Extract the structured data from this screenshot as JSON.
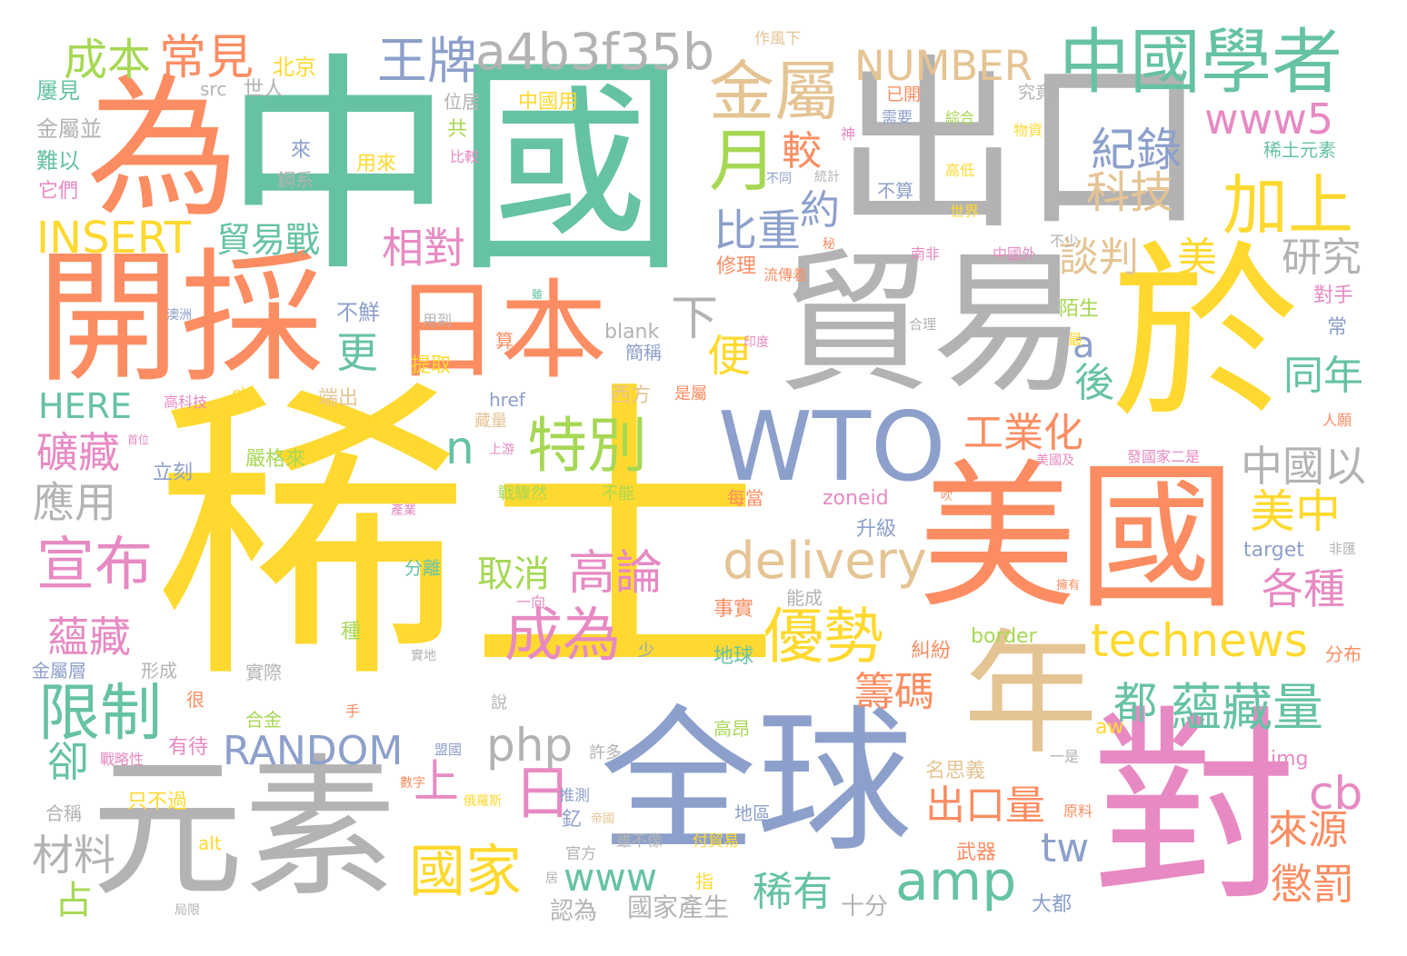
{
  "colors": {
    "teal": "#66c2a5",
    "orange": "#fc8d62",
    "blue": "#8da0cb",
    "pink": "#e78ac3",
    "green": "#a6d854",
    "yellow": "#ffd92f",
    "tan": "#e5c494",
    "gray": "#b3b3b3"
  },
  "words": [
    {
      "text": "稀土",
      "color": "yellow"
    },
    {
      "text": "中國",
      "color": "teal"
    },
    {
      "text": "出口",
      "color": "gray"
    },
    {
      "text": "為",
      "color": "orange"
    },
    {
      "text": "開採",
      "color": "orange"
    },
    {
      "text": "貿易",
      "color": "gray"
    },
    {
      "text": "於",
      "color": "yellow"
    },
    {
      "text": "美國",
      "color": "orange"
    },
    {
      "text": "全球",
      "color": "blue"
    },
    {
      "text": "元素",
      "color": "gray"
    },
    {
      "text": "對",
      "color": "pink"
    },
    {
      "text": "年",
      "color": "tan"
    },
    {
      "text": "日本",
      "color": "orange"
    },
    {
      "text": "WTO",
      "color": "blue"
    },
    {
      "text": "中國學者",
      "color": "teal"
    },
    {
      "text": "a4b3f35b",
      "color": "gray"
    },
    {
      "text": "王牌",
      "color": "blue"
    },
    {
      "text": "成本",
      "color": "green"
    },
    {
      "text": "常見",
      "color": "orange"
    },
    {
      "text": "金屬",
      "color": "tan"
    },
    {
      "text": "NUMBER",
      "color": "tan"
    },
    {
      "text": "紀錄",
      "color": "blue"
    },
    {
      "text": "科技",
      "color": "tan"
    },
    {
      "text": "www5",
      "color": "pink"
    },
    {
      "text": "加上",
      "color": "yellow"
    },
    {
      "text": "月",
      "color": "green"
    },
    {
      "text": "較",
      "color": "orange"
    },
    {
      "text": "INSERT",
      "color": "yellow"
    },
    {
      "text": "貿易戰",
      "color": "teal"
    },
    {
      "text": "相對",
      "color": "pink"
    },
    {
      "text": "比重",
      "color": "blue"
    },
    {
      "text": "約",
      "color": "blue"
    },
    {
      "text": "談判",
      "color": "tan"
    },
    {
      "text": "美",
      "color": "yellow"
    },
    {
      "text": "研究",
      "color": "gray"
    },
    {
      "text": "下",
      "color": "gray"
    },
    {
      "text": "更",
      "color": "teal"
    },
    {
      "text": "a",
      "color": "blue"
    },
    {
      "text": "便",
      "color": "yellow"
    },
    {
      "text": "後",
      "color": "teal"
    },
    {
      "text": "同年",
      "color": "teal"
    },
    {
      "text": "HERE",
      "color": "teal"
    },
    {
      "text": "特別",
      "color": "green"
    },
    {
      "text": "工業化",
      "color": "orange"
    },
    {
      "text": "中國以",
      "color": "gray"
    },
    {
      "text": "n",
      "color": "teal"
    },
    {
      "text": "礦藏",
      "color": "pink"
    },
    {
      "text": "應用",
      "color": "gray"
    },
    {
      "text": "宣布",
      "color": "pink"
    },
    {
      "text": "美中",
      "color": "yellow"
    },
    {
      "text": "delivery",
      "color": "tan"
    },
    {
      "text": "取消",
      "color": "green"
    },
    {
      "text": "高論",
      "color": "pink"
    },
    {
      "text": "各種",
      "color": "pink"
    },
    {
      "text": "成為",
      "color": "pink"
    },
    {
      "text": "優勢",
      "color": "yellow"
    },
    {
      "text": "technews",
      "color": "yellow"
    },
    {
      "text": "蘊藏",
      "color": "pink"
    },
    {
      "text": "限制",
      "color": "teal"
    },
    {
      "text": "都",
      "color": "teal"
    },
    {
      "text": "籌碼",
      "color": "orange"
    },
    {
      "text": "蘊藏量",
      "color": "teal"
    },
    {
      "text": "RANDOM",
      "color": "blue"
    },
    {
      "text": "php",
      "color": "gray"
    },
    {
      "text": "卻",
      "color": "teal"
    },
    {
      "text": "上",
      "color": "pink"
    },
    {
      "text": "日",
      "color": "pink"
    },
    {
      "text": "出口量",
      "color": "orange"
    },
    {
      "text": "cb",
      "color": "pink"
    },
    {
      "text": "tw",
      "color": "blue"
    },
    {
      "text": "來源",
      "color": "orange"
    },
    {
      "text": "材料",
      "color": "gray"
    },
    {
      "text": "國家",
      "color": "yellow"
    },
    {
      "text": "www",
      "color": "teal"
    },
    {
      "text": "amp",
      "color": "teal"
    },
    {
      "text": "稀有",
      "color": "teal"
    },
    {
      "text": "懲罰",
      "color": "orange"
    },
    {
      "text": "占",
      "color": "green"
    },
    {
      "text": "十分",
      "color": "gray"
    },
    {
      "text": "大都",
      "color": "blue"
    },
    {
      "text": "國家產生",
      "color": "gray"
    },
    {
      "text": "認為",
      "color": "gray"
    },
    {
      "text": "作風下",
      "color": "tan"
    },
    {
      "text": "北京",
      "color": "yellow"
    },
    {
      "text": "src",
      "color": "gray"
    },
    {
      "text": "世人",
      "color": "gray"
    },
    {
      "text": "位居",
      "color": "gray"
    },
    {
      "text": "中國用",
      "color": "yellow"
    },
    {
      "text": "已開",
      "color": "orange"
    },
    {
      "text": "究竟",
      "color": "gray"
    },
    {
      "text": "屢見",
      "color": "teal"
    },
    {
      "text": "金屬並",
      "color": "gray"
    },
    {
      "text": "難以",
      "color": "teal"
    },
    {
      "text": "它們",
      "color": "pink"
    },
    {
      "text": "共",
      "color": "green"
    },
    {
      "text": "比較",
      "color": "pink"
    },
    {
      "text": "來",
      "color": "blue"
    },
    {
      "text": "鋼系",
      "color": "gray"
    },
    {
      "text": "用來",
      "color": "yellow"
    },
    {
      "text": "神",
      "color": "pink"
    },
    {
      "text": "需要",
      "color": "blue"
    },
    {
      "text": "綜合",
      "color": "green"
    },
    {
      "text": "物資",
      "color": "yellow"
    },
    {
      "text": "稀土元素",
      "color": "teal"
    },
    {
      "text": "不同",
      "color": "blue"
    },
    {
      "text": "統計",
      "color": "gray"
    },
    {
      "text": "不算",
      "color": "blue"
    },
    {
      "text": "高低",
      "color": "yellow"
    },
    {
      "text": "世界",
      "color": "yellow"
    },
    {
      "text": "秘",
      "color": "orange"
    },
    {
      "text": "南非",
      "color": "pink"
    },
    {
      "text": "中國外",
      "color": "pink"
    },
    {
      "text": "不少",
      "color": "gray"
    },
    {
      "text": "流傳着",
      "color": "orange"
    },
    {
      "text": "修理",
      "color": "orange"
    },
    {
      "text": "陌生",
      "color": "green"
    },
    {
      "text": "對手",
      "color": "pink"
    },
    {
      "text": "常",
      "color": "blue"
    },
    {
      "text": "不鮮",
      "color": "blue"
    },
    {
      "text": "澳洲",
      "color": "blue"
    },
    {
      "text": "用到",
      "color": "gray"
    },
    {
      "text": "雖",
      "color": "teal"
    },
    {
      "text": "合理",
      "color": "gray"
    },
    {
      "text": "算",
      "color": "orange"
    },
    {
      "text": "提取",
      "color": "yellow"
    },
    {
      "text": "blank",
      "color": "gray"
    },
    {
      "text": "簡稱",
      "color": "blue"
    },
    {
      "text": "印度",
      "color": "pink"
    },
    {
      "text": "最",
      "color": "yellow"
    },
    {
      "text": "高科技",
      "color": "pink"
    },
    {
      "text": "ck",
      "color": "yellow"
    },
    {
      "text": "端出",
      "color": "tan"
    },
    {
      "text": "href",
      "color": "blue"
    },
    {
      "text": "西方",
      "color": "tan"
    },
    {
      "text": "是屬",
      "color": "orange"
    },
    {
      "text": "人願",
      "color": "orange"
    },
    {
      "text": "首位",
      "color": "pink"
    },
    {
      "text": "藏量",
      "color": "tan"
    },
    {
      "text": "上游",
      "color": "pink"
    },
    {
      "text": "嚴格來",
      "color": "green"
    },
    {
      "text": "美國及",
      "color": "pink"
    },
    {
      "text": "發國家二是",
      "color": "pink"
    },
    {
      "text": "立刻",
      "color": "blue"
    },
    {
      "text": "戰驟然",
      "color": "green"
    },
    {
      "text": "不能",
      "color": "green"
    },
    {
      "text": "每當",
      "color": "orange"
    },
    {
      "text": "zoneid",
      "color": "pink"
    },
    {
      "text": "產業",
      "color": "pink"
    },
    {
      "text": "吹",
      "color": "orange"
    },
    {
      "text": "升級",
      "color": "blue"
    },
    {
      "text": "target",
      "color": "blue"
    },
    {
      "text": "非匯",
      "color": "gray"
    },
    {
      "text": "分離",
      "color": "teal"
    },
    {
      "text": "擁有",
      "color": "orange"
    },
    {
      "text": "一向",
      "color": "pink"
    },
    {
      "text": "事實",
      "color": "orange"
    },
    {
      "text": "能成",
      "color": "gray"
    },
    {
      "text": "種",
      "color": "green"
    },
    {
      "text": "border",
      "color": "green"
    },
    {
      "text": "少",
      "color": "blue"
    },
    {
      "text": "地球",
      "color": "teal"
    },
    {
      "text": "糾紛",
      "color": "orange"
    },
    {
      "text": "分布",
      "color": "orange"
    },
    {
      "text": "實地",
      "color": "gray"
    },
    {
      "text": "金屬層",
      "color": "blue"
    },
    {
      "text": "形成",
      "color": "gray"
    },
    {
      "text": "實際",
      "color": "gray"
    },
    {
      "text": "很",
      "color": "orange"
    },
    {
      "text": "手",
      "color": "orange"
    },
    {
      "text": "說",
      "color": "gray"
    },
    {
      "text": "合金",
      "color": "green"
    },
    {
      "text": "高昂",
      "color": "green"
    },
    {
      "text": "有待",
      "color": "pink"
    },
    {
      "text": "盟國",
      "color": "blue"
    },
    {
      "text": "aw",
      "color": "yellow"
    },
    {
      "text": "一是",
      "color": "gray"
    },
    {
      "text": "戰略性",
      "color": "pink"
    },
    {
      "text": "許多",
      "color": "gray"
    },
    {
      "text": "img",
      "color": "pink"
    },
    {
      "text": "名思義",
      "color": "tan"
    },
    {
      "text": "數字",
      "color": "orange"
    },
    {
      "text": "推測",
      "color": "blue"
    },
    {
      "text": "只不過",
      "color": "yellow"
    },
    {
      "text": "俄羅斯",
      "color": "yellow"
    },
    {
      "text": "釔",
      "color": "blue"
    },
    {
      "text": "地區",
      "color": "blue"
    },
    {
      "text": "原料",
      "color": "orange"
    },
    {
      "text": "合稱",
      "color": "gray"
    },
    {
      "text": "帝國",
      "color": "tan"
    },
    {
      "text": "alt",
      "color": "yellow"
    },
    {
      "text": "雖不像",
      "color": "gray"
    },
    {
      "text": "付貿易",
      "color": "yellow"
    },
    {
      "text": "官方",
      "color": "gray"
    },
    {
      "text": "武器",
      "color": "orange"
    },
    {
      "text": "居",
      "color": "gray"
    },
    {
      "text": "指",
      "color": "yellow"
    },
    {
      "text": "局限",
      "color": "gray"
    }
  ]
}
